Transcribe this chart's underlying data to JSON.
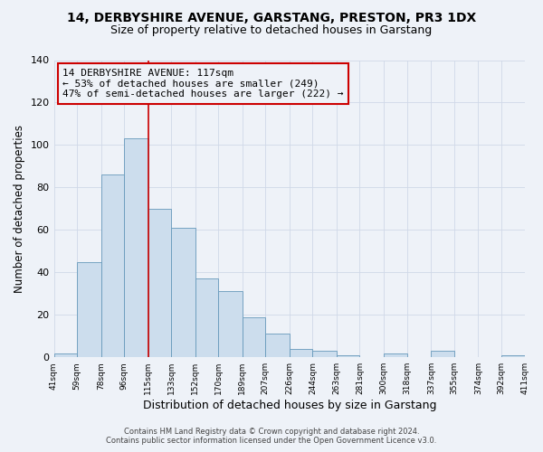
{
  "title": "14, DERBYSHIRE AVENUE, GARSTANG, PRESTON, PR3 1DX",
  "subtitle": "Size of property relative to detached houses in Garstang",
  "xlabel": "Distribution of detached houses by size in Garstang",
  "ylabel": "Number of detached properties",
  "bar_color": "#ccdded",
  "bar_edge_color": "#6699bb",
  "background_color": "#eef2f8",
  "bin_edges": [
    41,
    59,
    78,
    96,
    115,
    133,
    152,
    170,
    189,
    207,
    226,
    244,
    263,
    281,
    300,
    318,
    337,
    355,
    374,
    392,
    411
  ],
  "bin_labels": [
    "41sqm",
    "59sqm",
    "78sqm",
    "96sqm",
    "115sqm",
    "133sqm",
    "152sqm",
    "170sqm",
    "189sqm",
    "207sqm",
    "226sqm",
    "244sqm",
    "263sqm",
    "281sqm",
    "300sqm",
    "318sqm",
    "337sqm",
    "355sqm",
    "374sqm",
    "392sqm",
    "411sqm"
  ],
  "bar_heights": [
    2,
    45,
    86,
    103,
    70,
    61,
    37,
    31,
    19,
    11,
    4,
    3,
    1,
    0,
    2,
    0,
    3,
    0,
    0,
    1,
    0
  ],
  "vline_x": 115,
  "vline_color": "#cc0000",
  "annotation_line1": "14 DERBYSHIRE AVENUE: 117sqm",
  "annotation_line2": "← 53% of detached houses are smaller (249)",
  "annotation_line3": "47% of semi-detached houses are larger (222) →",
  "annotation_box_edge": "#cc0000",
  "annotation_fontsize": 8,
  "ylim": [
    0,
    140
  ],
  "yticks": [
    0,
    20,
    40,
    60,
    80,
    100,
    120,
    140
  ],
  "footer_line1": "Contains HM Land Registry data © Crown copyright and database right 2024.",
  "footer_line2": "Contains public sector information licensed under the Open Government Licence v3.0.",
  "grid_color": "#d0d8e8",
  "title_fontsize": 10,
  "subtitle_fontsize": 9
}
